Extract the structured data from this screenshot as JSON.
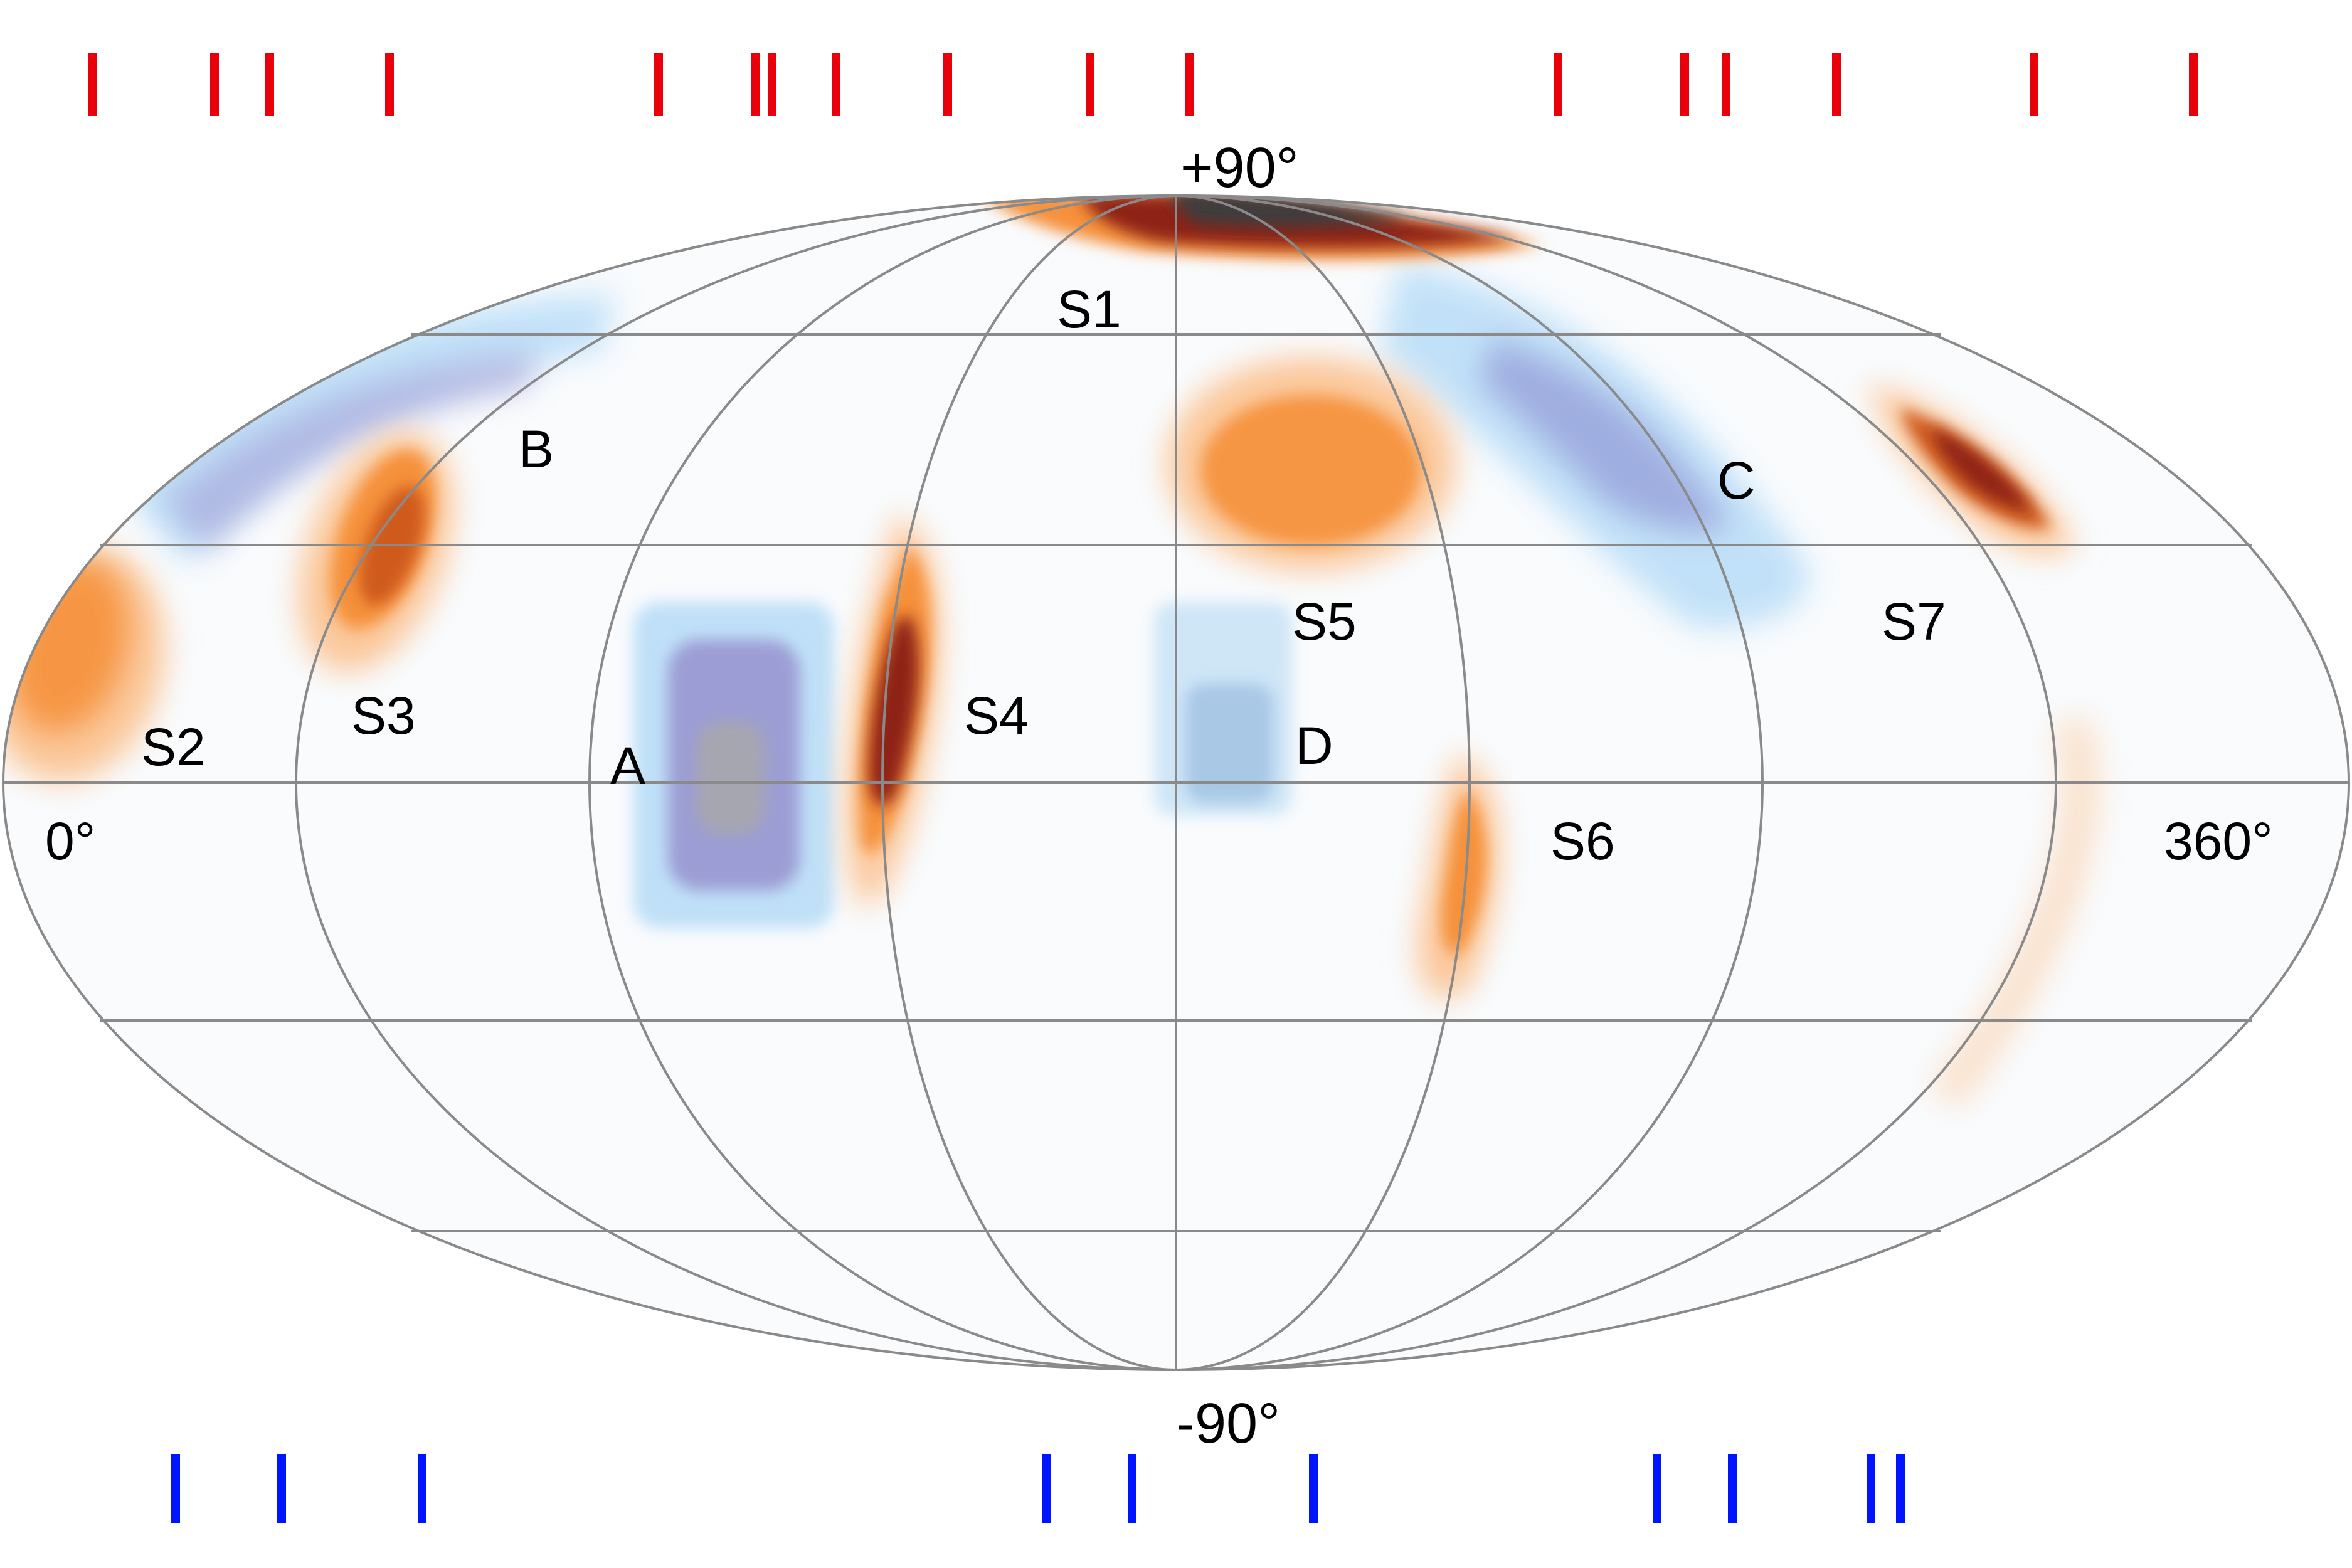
{
  "projection": "Mollweide",
  "axis_labels": {
    "north": "+90°",
    "south": "-90°",
    "left": "0°",
    "right": "360°"
  },
  "region_labels": {
    "S1": "S1",
    "S2": "S2",
    "S3": "S3",
    "S4": "S4",
    "S5": "S5",
    "S6": "S6",
    "S7": "S7",
    "A": "A",
    "B": "B",
    "C": "C",
    "D": "D"
  },
  "colors": {
    "top_ticks": "#e8000b",
    "bottom_ticks": "#0015ff",
    "grid": "#8a8a8a",
    "positive_scale": [
      "#fbc79a",
      "#f5913a",
      "#cf5a1b",
      "#8e2219",
      "#3d3d3d"
    ],
    "negative_scale": [
      "#cfe6fb",
      "#a7d2f7",
      "#9ea7dd",
      "#8f97c9"
    ]
  },
  "top_tick_marks": 17,
  "bottom_tick_marks": 10
}
